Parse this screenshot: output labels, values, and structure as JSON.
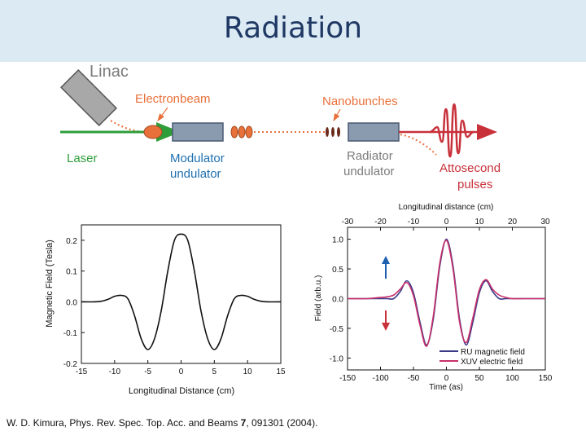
{
  "slide": {
    "title": "Radiation"
  },
  "diagram": {
    "linac_label": "Linac",
    "electronbeam_label": "Electronbeam",
    "laser_label": "Laser",
    "modulator_line1": "Modulator",
    "modulator_line2": "undulator",
    "nanobunches_label": "Nanobunches",
    "radiator_line1": "Radiator",
    "radiator_line2": "undulator",
    "attosecond_line1": "Attosecond",
    "attosecond_line2": "pulses",
    "colors": {
      "orange_text": "#e8703a",
      "green_beam": "#2e9e3a",
      "red_pulse": "#c8303a",
      "undulator": "#8a9bb0",
      "gray_text": "#7b7b7b"
    }
  },
  "caption": {
    "prefix": "W. D. Kimura, Phys. Rev. Spec. Top. Acc. and Beams ",
    "volume": "7",
    "suffix": ", 091301 (2004)."
  },
  "chart_data": [
    {
      "type": "line",
      "xlabel": "Longitudinal Distance (cm)",
      "ylabel": "Magnetic Field (Tesla)",
      "xlim": [
        -15,
        15
      ],
      "ylim": [
        -0.2,
        0.25
      ],
      "xticks": [
        "-15",
        "-10",
        "-5",
        "0",
        "5",
        "10",
        "15"
      ],
      "yticks": [
        "0.2",
        "0.1",
        "0.0",
        "-0.1",
        "-0.2"
      ],
      "series": [
        {
          "x": [
            -15,
            -13,
            -12,
            -11,
            -10,
            -9,
            -8,
            -7,
            -6,
            -5,
            -4,
            -3,
            -2,
            -1,
            0,
            1,
            2,
            3,
            4,
            5,
            6,
            7,
            8,
            9,
            10,
            11,
            12,
            13,
            15
          ],
          "y": [
            0.0,
            0.0,
            0.002,
            0.008,
            0.018,
            0.021,
            0.01,
            -0.045,
            -0.12,
            -0.155,
            -0.12,
            -0.03,
            0.1,
            0.2,
            0.22,
            0.2,
            0.1,
            -0.03,
            -0.12,
            -0.155,
            -0.12,
            -0.045,
            0.01,
            0.021,
            0.018,
            0.008,
            0.002,
            0.0,
            0.0
          ]
        }
      ]
    },
    {
      "type": "line",
      "xlabel": "Time (as)",
      "ylabel": "Field (arb.u.)",
      "x2label": "Longitudinal distance (cm)",
      "xlim": [
        -150,
        150
      ],
      "ylim": [
        -1.2,
        1.2
      ],
      "xticks": [
        "-150",
        "-100",
        "-50",
        "0",
        "50",
        "100",
        "150"
      ],
      "x2ticks": [
        "-30",
        "-20",
        "-10",
        "0",
        "10",
        "20",
        "30"
      ],
      "yticks": [
        "1.0",
        "0.5",
        "0.0",
        "-0.5",
        "-1.0"
      ],
      "legend": "bottom-right",
      "series": [
        {
          "name": "RU magnetic field",
          "color": "#3a3a8a",
          "x": [
            -150,
            -120,
            -100,
            -90,
            -80,
            -70,
            -60,
            -50,
            -40,
            -30,
            -20,
            -10,
            0,
            10,
            20,
            30,
            40,
            50,
            60,
            70,
            80,
            90,
            100,
            120,
            150
          ],
          "y": [
            0.0,
            0.0,
            0.0,
            0.0,
            0.0,
            0.12,
            0.3,
            0.1,
            -0.4,
            -0.78,
            -0.35,
            0.55,
            1.0,
            0.55,
            -0.35,
            -0.78,
            -0.4,
            0.1,
            0.3,
            0.12,
            0.0,
            0.0,
            0.0,
            0.0,
            0.0
          ]
        },
        {
          "name": "XUV electric field",
          "color": "#c8306a",
          "x": [
            -150,
            -120,
            -100,
            -90,
            -80,
            -70,
            -60,
            -50,
            -40,
            -30,
            -20,
            -10,
            0,
            10,
            20,
            30,
            40,
            50,
            60,
            70,
            80,
            90,
            100,
            120,
            150
          ],
          "y": [
            0.0,
            0.0,
            0.02,
            0.03,
            0.06,
            0.16,
            0.27,
            0.05,
            -0.45,
            -0.8,
            -0.3,
            0.6,
            0.98,
            0.5,
            -0.4,
            -0.74,
            -0.33,
            0.15,
            0.32,
            0.16,
            0.06,
            0.02,
            0.0,
            0.0,
            0.0
          ]
        }
      ]
    }
  ]
}
